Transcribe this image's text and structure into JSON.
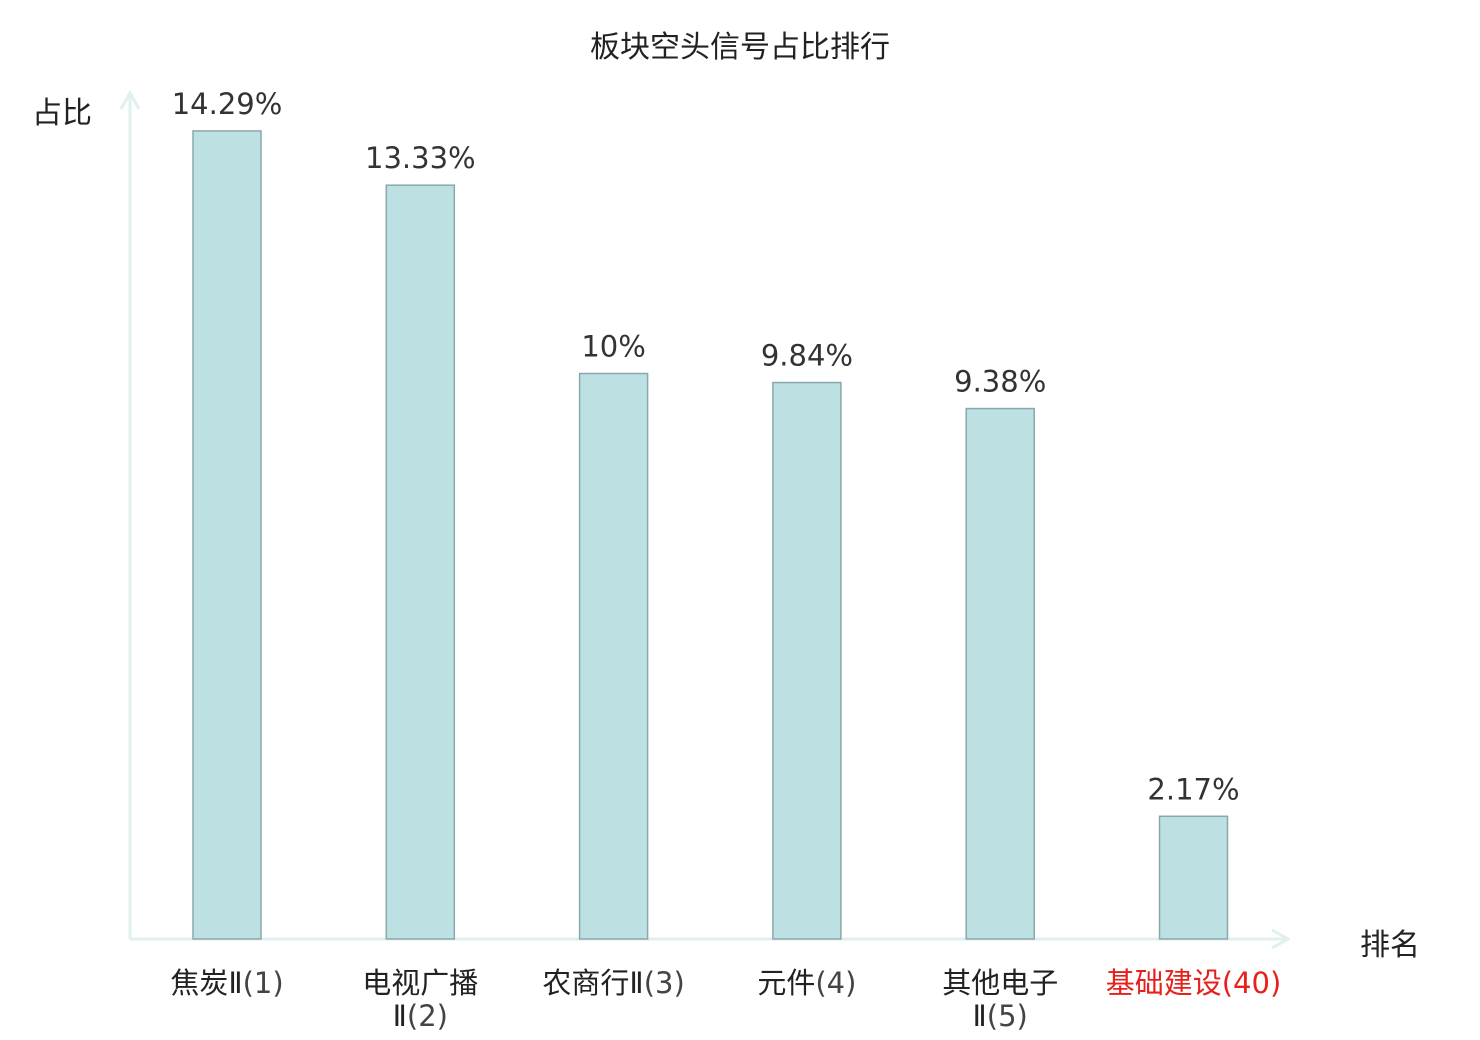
{
  "chart_data": {
    "type": "bar",
    "title": "板块空头信号占比排行",
    "ylabel": "占比",
    "xlabel": "排名",
    "ylim": [
      0,
      15.8
    ],
    "categories": [
      {
        "name": [
          "焦炭Ⅱ"
        ],
        "rank": "(1)"
      },
      {
        "name": [
          "电视广播",
          "Ⅱ"
        ],
        "rank": "(2)"
      },
      {
        "name": [
          "农商行Ⅱ"
        ],
        "rank": "(3)"
      },
      {
        "name": [
          "元件"
        ],
        "rank": "(4)"
      },
      {
        "name": [
          "其他电子",
          "Ⅱ"
        ],
        "rank": "(5)"
      },
      {
        "name": [
          "基础建设"
        ],
        "rank": "(40)",
        "highlight": true
      }
    ],
    "values": [
      14.29,
      13.33,
      10,
      9.84,
      9.38,
      2.17
    ],
    "value_labels": [
      "14.29%",
      "13.33%",
      "10%",
      "9.84%",
      "9.38%",
      "2.17%"
    ],
    "colors": {
      "bar": "#bde0e3",
      "bar_stroke": "#8aa8ab",
      "axis": "#dff0ee",
      "highlight": "#e8201c"
    },
    "grid": false
  }
}
